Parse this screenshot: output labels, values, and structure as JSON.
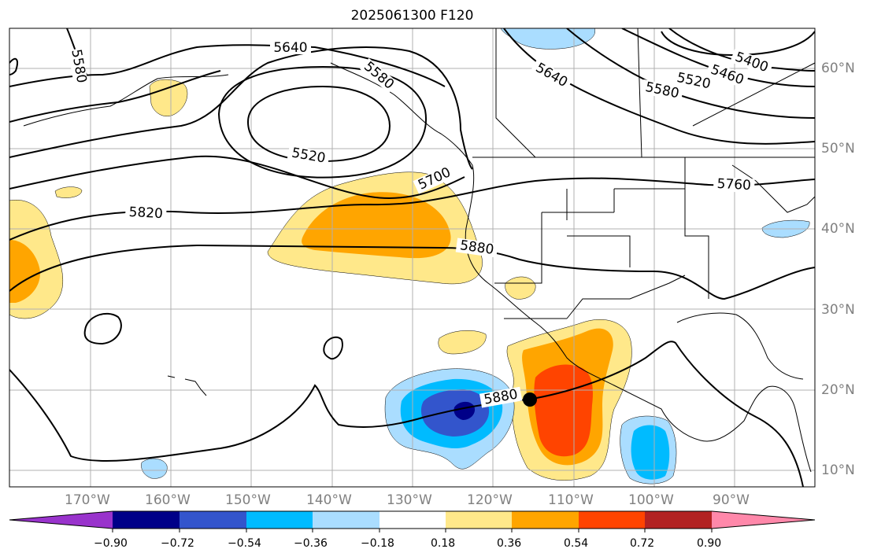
{
  "title": "2025061300 F120",
  "colors": {
    "land_border": "#000000",
    "grid": "#b0b0b0",
    "contour": "#000000",
    "axis_label": "#808080"
  },
  "lat_labels": [
    "60°N",
    "50°N",
    "40°N",
    "30°N",
    "20°N",
    "10°N"
  ],
  "lon_labels": [
    "170°W",
    "160°W",
    "150°W",
    "140°W",
    "130°W",
    "120°W",
    "110°W",
    "100°W",
    "90°W"
  ],
  "contour_labels": [
    "5580",
    "5640",
    "5580",
    "5520",
    "5700",
    "5820",
    "5880",
    "5760",
    "5640",
    "5580",
    "5520",
    "5460",
    "5400",
    "5880"
  ],
  "colorbar": {
    "colors": [
      "#9933cc",
      "#000088",
      "#3355cc",
      "#00bbff",
      "#aaddff",
      "#ffffff",
      "#ffe88a",
      "#ffa500",
      "#ff4400",
      "#b22222",
      "#ff88aa"
    ],
    "tick_labels": [
      "−0.90",
      "−0.72",
      "−0.54",
      "−0.36",
      "−0.18",
      "0.18",
      "0.36",
      "0.54",
      "0.72",
      "0.90"
    ]
  },
  "marker": "storm-position-dot"
}
